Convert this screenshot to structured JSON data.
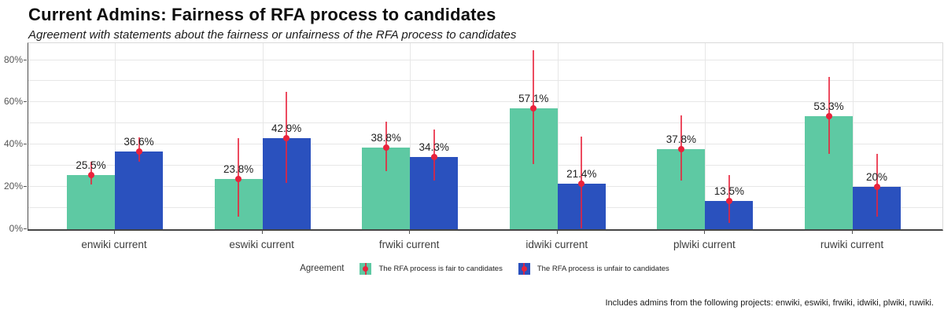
{
  "chart_data": {
    "type": "bar",
    "title": "Current Admins: Fairness of RFA process to candidates",
    "subtitle": "Agreement with statements about the fairness or unfairness of the RFA process to candidates",
    "categories": [
      "enwiki current",
      "eswiki current",
      "frwiki current",
      "idwiki current",
      "plwiki current",
      "ruwiki current"
    ],
    "series": [
      {
        "name": "The RFA process is fair to candidates",
        "color": "#5EC9A3",
        "values": [
          25.5,
          23.8,
          38.8,
          57.1,
          37.8,
          53.3
        ],
        "labels": [
          "25.5%",
          "23.8%",
          "38.8%",
          "57.1%",
          "37.8%",
          "53.3%"
        ],
        "ci_low": [
          21,
          6,
          27.5,
          31,
          23,
          35.5
        ],
        "ci_high": [
          32,
          43,
          51,
          84.5,
          54,
          72
        ]
      },
      {
        "name": "The RFA process is unfair to candidates",
        "color": "#2A51BE",
        "values": [
          36.6,
          42.9,
          34.3,
          21.4,
          13.5,
          20
        ],
        "labels": [
          "36.6%",
          "42.9%",
          "34.3%",
          "21.4%",
          "13.5%",
          "20%"
        ],
        "ci_low": [
          32,
          22,
          23,
          0.5,
          3,
          6
        ],
        "ci_high": [
          43.5,
          65,
          47,
          44,
          25.5,
          35.5
        ]
      }
    ],
    "xlabel": "",
    "ylabel": "",
    "ylim": [
      0,
      88
    ],
    "yticks": [
      {
        "value": 0,
        "label": "0%"
      },
      {
        "value": 20,
        "label": "20%"
      },
      {
        "value": 40,
        "label": "40%"
      },
      {
        "value": 60,
        "label": "60%"
      },
      {
        "value": 80,
        "label": "80%"
      }
    ],
    "grid": true,
    "legend_position": "bottom",
    "legend_title": "Agreement",
    "error_bar_color": "#E9233C",
    "footnote": "Includes admins from the following projects: enwiki, eswiki, frwiki, idwiki, plwiki, ruwiki."
  }
}
